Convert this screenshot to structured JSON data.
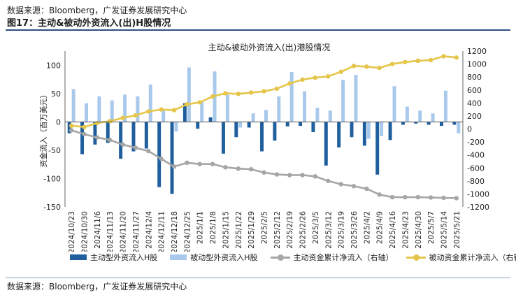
{
  "header": {
    "source_top": "数据来源：Bloomberg，广发证券发展研究中心",
    "figure_title": "图17：主动&被动外资流入(出)H股情况"
  },
  "footer": {
    "source_bottom": "数据来源：Bloomberg，广发证券发展研究中心"
  },
  "colors": {
    "active_bar": "#1f5f9e",
    "passive_bar": "#a9c9ec",
    "active_cum": "#a6a6a6",
    "passive_cum": "#e5c64a"
  },
  "chart_data": {
    "type": "bar",
    "title": "主动&被动外资流入(出)港股情况",
    "ylabel": "资金流入（百万美元）",
    "ylim": [
      -150,
      125
    ],
    "yticks": [
      -150,
      -100,
      -50,
      0,
      50,
      100,
      125
    ],
    "y2lim": [
      -1200,
      1200
    ],
    "y2ticks": [
      -1200,
      -1000,
      -800,
      -600,
      -400,
      -200,
      0,
      200,
      400,
      600,
      800,
      1000,
      1200
    ],
    "categories": [
      "2024/10/23",
      "2024/10/30",
      "2024/11/6",
      "2024/11/13",
      "2024/11/20",
      "2024/11/27",
      "2024/12/4",
      "2024/12/11",
      "2024/12/18",
      "2024/12/25",
      "2025/1/1",
      "2025/1/8",
      "2025/1/15",
      "2025/1/22",
      "2025/1/29",
      "2025/2/5",
      "2025/2/12",
      "2025/2/19",
      "2025/2/26",
      "2025/3/5",
      "2025/3/12",
      "2025/3/19",
      "2025/3/26",
      "2025/4/2",
      "2025/4/9",
      "2025/4/16",
      "2025/4/23",
      "2025/4/30",
      "2025/5/7",
      "2025/5/14",
      "2025/5/21"
    ],
    "series": [
      {
        "name": "主动型外资流入H股",
        "axis": "left",
        "kind": "bar",
        "values": [
          -20,
          -57,
          -40,
          -37,
          -65,
          -52,
          -47,
          -115,
          -127,
          33,
          -12,
          8,
          -56,
          -27,
          -10,
          -52,
          -33,
          -8,
          -7,
          -18,
          -77,
          -45,
          -27,
          -42,
          -93,
          -32,
          -5,
          -3,
          -5,
          -7,
          -5
        ]
      },
      {
        "name": "被动型外资流入H股",
        "axis": "left",
        "kind": "bar",
        "values": [
          58,
          33,
          45,
          38,
          48,
          45,
          66,
          20,
          -17,
          96,
          35,
          89,
          48,
          -10,
          15,
          21,
          45,
          88,
          54,
          25,
          20,
          74,
          83,
          -30,
          -25,
          63,
          27,
          20,
          15,
          55,
          -20
        ]
      },
      {
        "name": "主动资金累计净流入（右轴）",
        "axis": "right",
        "kind": "line",
        "values": [
          -20,
          -80,
          -130,
          -170,
          -240,
          -290,
          -340,
          -460,
          -580,
          -520,
          -540,
          -540,
          -590,
          -610,
          -620,
          -670,
          -700,
          -710,
          -710,
          -730,
          -800,
          -850,
          -880,
          -920,
          -1010,
          -1050,
          -1050,
          -1050,
          -1055,
          -1060,
          -1065
        ]
      },
      {
        "name": "被动资金累计净流入（右轴）",
        "axis": "right",
        "kind": "line",
        "values": [
          50,
          30,
          90,
          120,
          170,
          210,
          270,
          300,
          290,
          380,
          410,
          500,
          550,
          540,
          560,
          580,
          620,
          700,
          760,
          790,
          810,
          880,
          970,
          960,
          940,
          1000,
          1030,
          1050,
          1060,
          1120,
          1100
        ]
      }
    ]
  }
}
